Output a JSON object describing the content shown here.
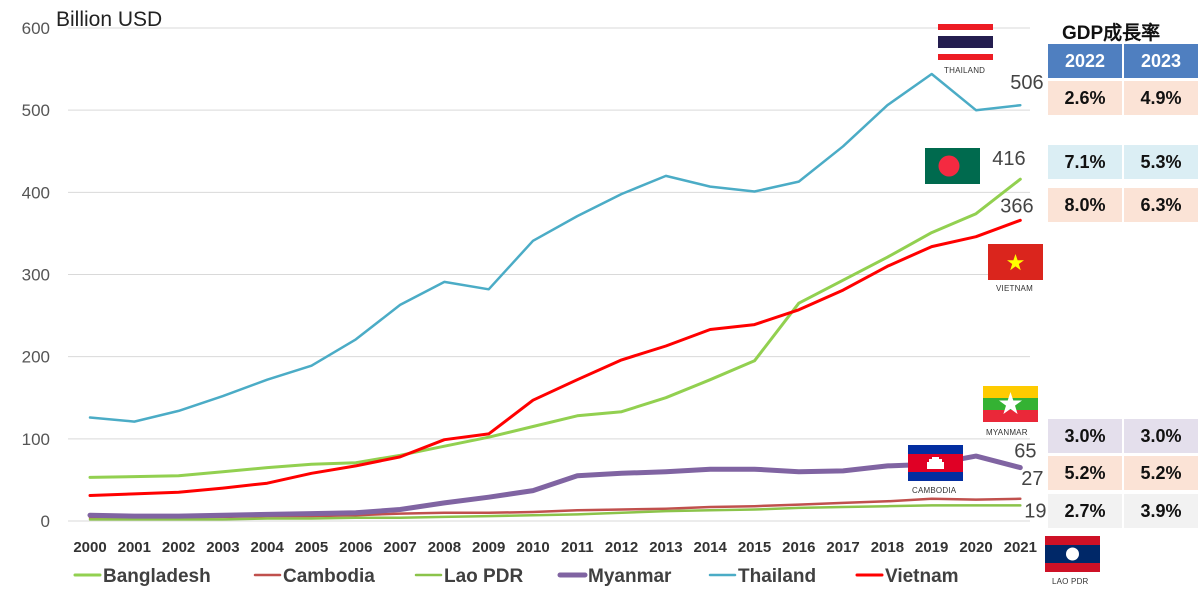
{
  "chart_data": {
    "type": "line",
    "unit_label": "Billion USD",
    "x": [
      "2000",
      "2001",
      "2002",
      "2003",
      "2004",
      "2005",
      "2006",
      "2007",
      "2008",
      "2009",
      "2010",
      "2011",
      "2012",
      "2013",
      "2014",
      "2015",
      "2016",
      "2017",
      "2018",
      "2019",
      "2020",
      "2021"
    ],
    "ylim": [
      0,
      600
    ],
    "yticks": [
      "0",
      "100",
      "200",
      "300",
      "400",
      "500",
      "600"
    ],
    "grid": true,
    "legend_position": "bottom",
    "series": [
      {
        "name": "Bangladesh",
        "color": "#92d050",
        "width": 3,
        "values": [
          53,
          54,
          55,
          60,
          65,
          69,
          71,
          80,
          91,
          102,
          115,
          128,
          133,
          150,
          172,
          195,
          265,
          293,
          321,
          351,
          374,
          416
        ]
      },
      {
        "name": "Cambodia",
        "color": "#c0504d",
        "width": 2.5,
        "values": [
          4,
          4,
          4,
          5,
          6,
          6,
          7,
          9,
          10,
          10,
          11,
          13,
          14,
          15,
          17,
          18,
          20,
          22,
          24,
          27,
          26,
          27
        ]
      },
      {
        "name": "Lao PDR",
        "color": "#8bc34a",
        "width": 2.5,
        "values": [
          2,
          2,
          2,
          2,
          3,
          3,
          4,
          4,
          5,
          6,
          7,
          8,
          10,
          12,
          13,
          14,
          16,
          17,
          18,
          19,
          19,
          19
        ]
      },
      {
        "name": "Myanmar",
        "color": "#8064a2",
        "width": 5,
        "values": [
          7,
          6,
          6,
          7,
          8,
          9,
          10,
          14,
          22,
          29,
          37,
          55,
          58,
          60,
          63,
          63,
          60,
          61,
          67,
          69,
          79,
          65
        ]
      },
      {
        "name": "Thailand",
        "color": "#4bacc6",
        "width": 2.5,
        "values": [
          126,
          121,
          134,
          152,
          172,
          189,
          221,
          263,
          291,
          282,
          341,
          371,
          398,
          420,
          407,
          401,
          413,
          456,
          506,
          544,
          500,
          506
        ]
      },
      {
        "name": "Vietnam",
        "color": "#ff0000",
        "width": 3,
        "values": [
          31,
          33,
          35,
          40,
          46,
          58,
          67,
          78,
          99,
          106,
          147,
          172,
          196,
          213,
          233,
          239,
          257,
          281,
          310,
          334,
          346,
          366
        ]
      }
    ],
    "end_labels": [
      {
        "series": "Thailand",
        "text": "506"
      },
      {
        "series": "Bangladesh",
        "text": "416"
      },
      {
        "series": "Vietnam",
        "text": "366"
      },
      {
        "series": "Myanmar",
        "text": "65"
      },
      {
        "series": "Cambodia",
        "text": "27"
      },
      {
        "series": "Lao PDR",
        "text": "19"
      }
    ]
  },
  "flags": {
    "thailand": "THAILAND",
    "bangladesh": "",
    "vietnam": "VIETNAM",
    "myanmar": "MYANMAR",
    "cambodia": "CAMBODIA",
    "laos": "LAO PDR"
  },
  "growth_table": {
    "title": "GDP成長率",
    "col_2022": "2022",
    "col_2023": "2023",
    "rows": [
      {
        "country": "Thailand",
        "y2022": "2.6%",
        "y2023": "4.9%",
        "bg": "#fbe3d6"
      },
      {
        "country": "Bangladesh",
        "y2022": "7.1%",
        "y2023": "5.3%",
        "bg": "#dbeef4"
      },
      {
        "country": "Vietnam",
        "y2022": "8.0%",
        "y2023": "6.3%",
        "bg": "#fbe3d6"
      },
      {
        "country": "Myanmar",
        "y2022": "3.0%",
        "y2023": "3.0%",
        "bg": "#e4dfec"
      },
      {
        "country": "Cambodia",
        "y2022": "5.2%",
        "y2023": "5.2%",
        "bg": "#fbe3d6"
      },
      {
        "country": "Lao PDR",
        "y2022": "2.7%",
        "y2023": "3.9%",
        "bg": "#f2f2f2"
      }
    ]
  }
}
